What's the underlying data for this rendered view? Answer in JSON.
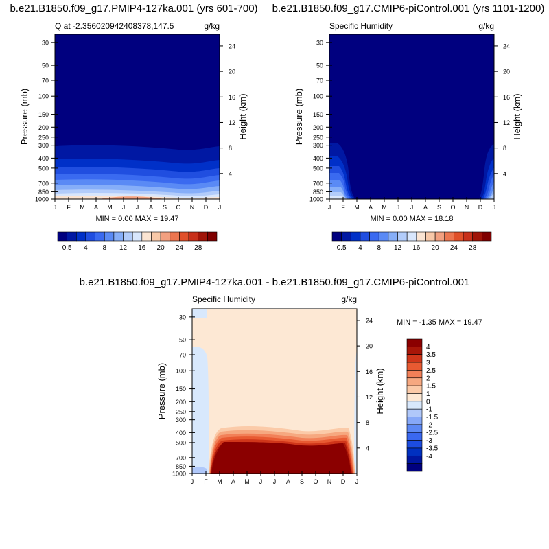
{
  "colors": {
    "q_levels": [
      "#00007f",
      "#0018a3",
      "#0030c8",
      "#204ee0",
      "#3a6af0",
      "#5a8af5",
      "#86aef8",
      "#b2ccfa",
      "#d8e6fc",
      "#fbe4d2",
      "#f8c8a8",
      "#f2a080",
      "#ec7650",
      "#e0502a",
      "#c8301a",
      "#a01408",
      "#7f0000"
    ],
    "diff_levels": [
      "#00007f",
      "#0016a0",
      "#0030c0",
      "#1c4ce0",
      "#3a68f0",
      "#5c88f4",
      "#86a8f8",
      "#b0c8fa",
      "#d8e8fc",
      "#fde8d4",
      "#fbcaa8",
      "#f6a880",
      "#f28058",
      "#e85a32",
      "#d0361a",
      "#a81608",
      "#8b0000"
    ]
  },
  "chart_data": [
    {
      "type": "heatmap",
      "title": "b.e21.B1850.f09_g17.PMIP4-127ka.001 (yrs 601-700)",
      "left_label": "Q at -2.356020942408378,147.5",
      "right_label": "g/kg",
      "ylabel": "Pressure (mb)",
      "ylabel_right": "Height (km)",
      "xticks": [
        "J",
        "F",
        "M",
        "A",
        "M",
        "J",
        "J",
        "A",
        "S",
        "O",
        "N",
        "D",
        "J"
      ],
      "yticks": [
        "30",
        "50",
        "70",
        "100",
        "150",
        "200",
        "250",
        "300",
        "400",
        "500",
        "700",
        "850",
        "1000"
      ],
      "yticks_right": [
        "24",
        "20",
        "16",
        "12",
        "8",
        "4"
      ],
      "ylim": [
        1000,
        25
      ],
      "y_scale": "log",
      "stats": "MIN =   0.00 MAX =  19.47",
      "min": 0.0,
      "max": 19.47,
      "colorbar_labels": [
        "0.5",
        "4",
        "8",
        "12",
        "16",
        "20",
        "24",
        "28"
      ],
      "colorbar_position": "bottom"
    },
    {
      "type": "heatmap",
      "title": "b.e21.B1850.f09_g17.CMIP6-piControl.001 (yrs 1101-1200)",
      "left_label": "Specific Humidity",
      "right_label": "g/kg",
      "ylabel": "Pressure (mb)",
      "ylabel_right": "Height (km)",
      "xticks": [
        "J",
        "F",
        "M",
        "A",
        "M",
        "J",
        "J",
        "A",
        "S",
        "O",
        "N",
        "D",
        "J"
      ],
      "yticks": [
        "30",
        "50",
        "70",
        "100",
        "150",
        "200",
        "250",
        "300",
        "400",
        "500",
        "700",
        "850",
        "1000"
      ],
      "yticks_right": [
        "24",
        "20",
        "16",
        "12",
        "8",
        "4"
      ],
      "ylim": [
        1000,
        25
      ],
      "y_scale": "log",
      "stats": "MIN =   0.00 MAX =  18.18",
      "min": 0.0,
      "max": 18.18,
      "colorbar_labels": [
        "0.5",
        "4",
        "8",
        "12",
        "16",
        "20",
        "24",
        "28"
      ],
      "colorbar_position": "bottom"
    },
    {
      "type": "heatmap",
      "title": "b.e21.B1850.f09_g17.PMIP4-127ka.001 - b.e21.B1850.f09_g17.CMIP6-piControl.001",
      "left_label": "Specific Humidity",
      "right_label": "g/kg",
      "ylabel": "Pressure (mb)",
      "ylabel_right": "Height (km)",
      "xticks": [
        "J",
        "F",
        "M",
        "A",
        "M",
        "J",
        "J",
        "A",
        "S",
        "O",
        "N",
        "D",
        "J"
      ],
      "yticks": [
        "30",
        "50",
        "70",
        "100",
        "150",
        "200",
        "250",
        "300",
        "400",
        "500",
        "700",
        "850",
        "1000"
      ],
      "yticks_right": [
        "24",
        "20",
        "16",
        "12",
        "8",
        "4"
      ],
      "ylim": [
        1000,
        25
      ],
      "y_scale": "log",
      "stats": "MIN =  -1.35 MAX =  19.47",
      "min": -1.35,
      "max": 19.47,
      "colorbar_labels": [
        "4",
        "3.5",
        "3",
        "2.5",
        "2",
        "1.5",
        "1",
        "0",
        "-1",
        "-1.5",
        "-2",
        "-2.5",
        "-3",
        "-3.5",
        "-4"
      ],
      "colorbar_position": "right"
    }
  ]
}
